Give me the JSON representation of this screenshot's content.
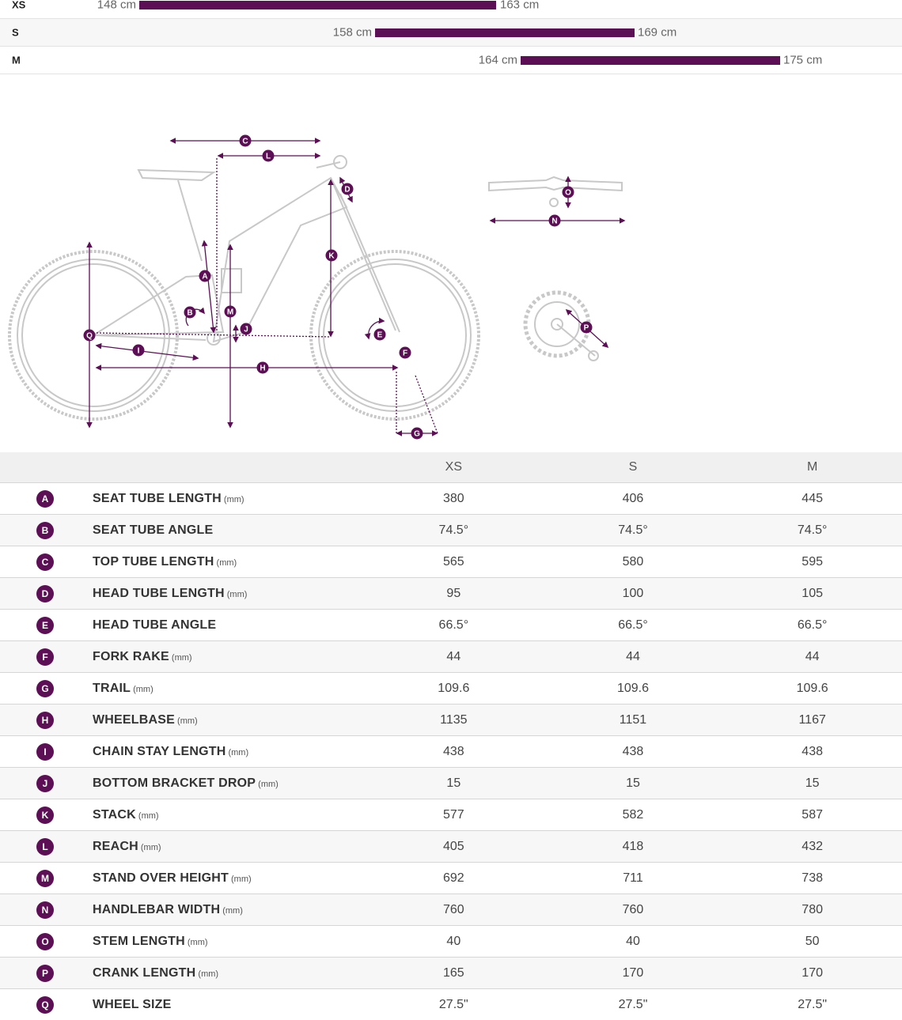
{
  "rider_sizes": [
    {
      "code": "XS",
      "min": "148 cm",
      "max": "163 cm"
    },
    {
      "code": "S",
      "min": "158 cm",
      "max": "169 cm"
    },
    {
      "code": "M",
      "min": "164 cm",
      "max": "175 cm"
    }
  ],
  "diagram": {
    "accent": "#5c0f55",
    "frame_color": "#cccccc",
    "labels": [
      "A",
      "B",
      "C",
      "D",
      "E",
      "F",
      "G",
      "H",
      "I",
      "J",
      "K",
      "L",
      "M",
      "N",
      "O",
      "P",
      "Q"
    ]
  },
  "table": {
    "headers": [
      "XS",
      "S",
      "M"
    ],
    "rows": [
      {
        "badge": "A",
        "name": "SEAT TUBE LENGTH",
        "unit": "(mm)",
        "values": [
          "380",
          "406",
          "445"
        ]
      },
      {
        "badge": "B",
        "name": "SEAT TUBE ANGLE",
        "unit": "",
        "values": [
          "74.5°",
          "74.5°",
          "74.5°"
        ]
      },
      {
        "badge": "C",
        "name": "TOP TUBE LENGTH",
        "unit": "(mm)",
        "values": [
          "565",
          "580",
          "595"
        ]
      },
      {
        "badge": "D",
        "name": "HEAD TUBE LENGTH",
        "unit": "(mm)",
        "values": [
          "95",
          "100",
          "105"
        ]
      },
      {
        "badge": "E",
        "name": "HEAD TUBE ANGLE",
        "unit": "",
        "values": [
          "66.5°",
          "66.5°",
          "66.5°"
        ]
      },
      {
        "badge": "F",
        "name": "FORK RAKE",
        "unit": "(mm)",
        "values": [
          "44",
          "44",
          "44"
        ]
      },
      {
        "badge": "G",
        "name": "TRAIL",
        "unit": "(mm)",
        "values": [
          "109.6",
          "109.6",
          "109.6"
        ]
      },
      {
        "badge": "H",
        "name": "WHEELBASE",
        "unit": "(mm)",
        "values": [
          "1135",
          "1151",
          "1167"
        ]
      },
      {
        "badge": "I",
        "name": "CHAIN STAY LENGTH",
        "unit": "(mm)",
        "values": [
          "438",
          "438",
          "438"
        ]
      },
      {
        "badge": "J",
        "name": "BOTTOM BRACKET DROP",
        "unit": "(mm)",
        "values": [
          "15",
          "15",
          "15"
        ]
      },
      {
        "badge": "K",
        "name": "STACK",
        "unit": "(mm)",
        "values": [
          "577",
          "582",
          "587"
        ]
      },
      {
        "badge": "L",
        "name": "REACH",
        "unit": "(mm)",
        "values": [
          "405",
          "418",
          "432"
        ]
      },
      {
        "badge": "M",
        "name": "STAND OVER HEIGHT",
        "unit": "(mm)",
        "values": [
          "692",
          "711",
          "738"
        ]
      },
      {
        "badge": "N",
        "name": "HANDLEBAR WIDTH",
        "unit": "(mm)",
        "values": [
          "760",
          "760",
          "780"
        ]
      },
      {
        "badge": "O",
        "name": "STEM LENGTH",
        "unit": "(mm)",
        "values": [
          "40",
          "40",
          "50"
        ]
      },
      {
        "badge": "P",
        "name": "CRANK LENGTH",
        "unit": "(mm)",
        "values": [
          "165",
          "170",
          "170"
        ]
      },
      {
        "badge": "Q",
        "name": "WHEEL SIZE",
        "unit": "",
        "values": [
          "27.5\"",
          "27.5\"",
          "27.5\""
        ]
      }
    ]
  }
}
